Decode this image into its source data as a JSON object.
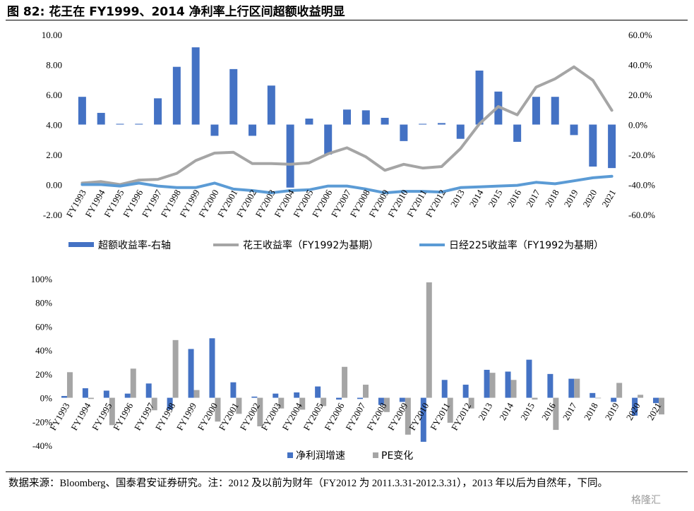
{
  "title": "图 82: 花王在 FY1999、2014 净利率上行区间超额收益明显",
  "source_note": "数据来源：Bloomberg、国泰君安证券研究。注：2012 及以前为财年（FY2012 为 2011.3.31-2012.3.31），2013 年以后为自然年，下同。",
  "watermark": "格隆汇",
  "colors": {
    "blue": "#4472C4",
    "gray": "#A5A5A5",
    "light_blue": "#5B9BD5"
  },
  "chart_data": [
    {
      "type": "bar+line",
      "categories": [
        "FY1993",
        "FY1994",
        "FY1995",
        "FY1996",
        "FY1997",
        "FY1998",
        "FY1999",
        "FY2000",
        "FY2001",
        "FY2002",
        "FY2003",
        "FY2004",
        "FY2005",
        "FY2006",
        "FY2007",
        "FY2008",
        "FY2009",
        "FY2010",
        "FY2011",
        "FY2012",
        "2013",
        "2014",
        "2015",
        "2016",
        "2017",
        "2018",
        "2019",
        "2020",
        "2021"
      ],
      "y_left": {
        "min": -2,
        "max": 10,
        "step": 2,
        "tick_labels": [
          "-2.00",
          "0.00",
          "2.00",
          "4.00",
          "6.00",
          "8.00",
          "10.00"
        ]
      },
      "y_right": {
        "min": -60,
        "max": 60,
        "step": 20,
        "tick_labels": [
          "-60.0%",
          "-40.0%",
          "-20.0%",
          "0.0%",
          "20.0%",
          "40.0%",
          "60.0%"
        ]
      },
      "series": [
        {
          "name": "超额收益率-右轴",
          "type": "bar",
          "axis": "right",
          "color": "#4472C4",
          "values": [
            18.5,
            7.8,
            0.5,
            0.5,
            17.5,
            38.5,
            51.5,
            -7.5,
            37,
            -7.5,
            26,
            -42,
            4,
            -20,
            10,
            9.5,
            4.5,
            -11,
            0.5,
            1,
            -9.5,
            36,
            22,
            -11.5,
            18.5,
            18.5,
            -7,
            -28,
            -29
          ]
        },
        {
          "name": "花王收益率（FY1992为基期）",
          "type": "line",
          "axis": "left",
          "color": "#A5A5A5",
          "values": [
            0.1,
            0.2,
            0,
            0.3,
            0.35,
            0.75,
            1.6,
            2.1,
            2.15,
            1.4,
            1.4,
            1.35,
            1.45,
            2.05,
            2.45,
            1.85,
            0.95,
            1.35,
            1.1,
            1.2,
            2.4,
            4.05,
            5.2,
            4.65,
            6.5,
            7.05,
            7.85,
            6.95,
            4.95
          ]
        },
        {
          "name": "日经225收益率（FY1992为基期）",
          "type": "line",
          "axis": "left",
          "color": "#5B9BD5",
          "values": [
            0,
            0,
            -0.1,
            0.1,
            -0.1,
            -0.2,
            -0.2,
            0.1,
            -0.3,
            -0.4,
            -0.55,
            -0.4,
            -0.35,
            -0.1,
            -0.1,
            -0.3,
            -0.55,
            -0.45,
            -0.45,
            -0.5,
            -0.2,
            -0.15,
            -0.1,
            -0.05,
            0.15,
            0.05,
            0.25,
            0.45,
            0.55
          ]
        }
      ]
    },
    {
      "type": "bar",
      "categories": [
        "FY1993",
        "FY1994",
        "FY1995",
        "FY1996",
        "FY1997",
        "FY1998",
        "FY1999",
        "FY2000",
        "FY2001",
        "FY2002",
        "FY2003",
        "FY2004",
        "FY2005",
        "FY2006",
        "FY2007",
        "FY2008",
        "FY2009",
        "FY2010",
        "FY2011",
        "FY2012",
        "2013",
        "2014",
        "2015",
        "2016",
        "2017",
        "2018",
        "2019",
        "2020",
        "2021"
      ],
      "y": {
        "min": -40,
        "max": 100,
        "step": 20,
        "tick_labels": [
          "-40%",
          "-20%",
          "0%",
          "20%",
          "40%",
          "60%",
          "80%",
          "100%"
        ]
      },
      "series": [
        {
          "name": "净利润增速",
          "color": "#4472C4",
          "values": [
            1.5,
            8,
            6,
            3.5,
            12,
            -10,
            41,
            50,
            13,
            1,
            3.5,
            4.5,
            9.5,
            -1.5,
            -1,
            -6,
            -3.5,
            -37,
            15,
            11,
            23.5,
            22,
            32,
            20,
            16,
            4,
            -3.5,
            -15,
            -4.5
          ]
        },
        {
          "name": "PE变化",
          "color": "#A5A5A5",
          "values": [
            21.5,
            -1,
            -23,
            24.5,
            -10.5,
            48.5,
            6.5,
            -20,
            -13.5,
            -24,
            -9,
            -10,
            -7,
            26,
            11,
            -12,
            -31,
            97,
            -21,
            -9,
            21,
            15,
            -1.5,
            -27,
            16,
            0,
            12.5,
            2.5,
            -14
          ]
        }
      ]
    }
  ]
}
